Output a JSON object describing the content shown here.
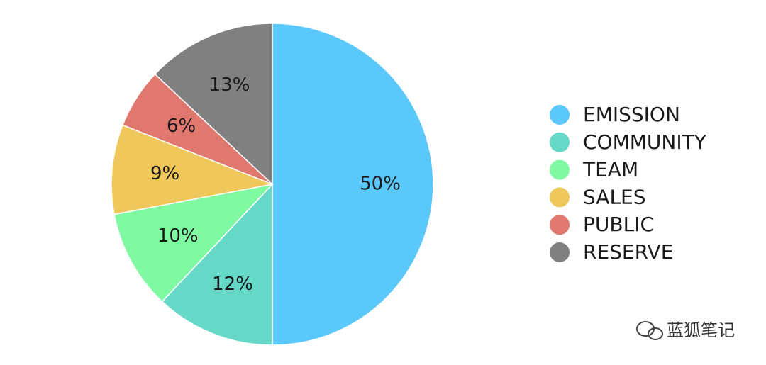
{
  "chart_data": {
    "type": "pie",
    "categories": [
      "EMISSION",
      "COMMUNITY",
      "TEAM",
      "SALES",
      "PUBLIC",
      "RESERVE"
    ],
    "values": [
      50,
      12,
      10,
      9,
      6,
      13
    ],
    "value_labels": [
      "50%",
      "12%",
      "10%",
      "9%",
      "6%",
      "13%"
    ],
    "colors": [
      "#5bc8fb",
      "#66d8c8",
      "#80f9a3",
      "#f0c75a",
      "#e07870",
      "#808080"
    ],
    "legend": "right",
    "watermark": "蓝狐笔记"
  }
}
